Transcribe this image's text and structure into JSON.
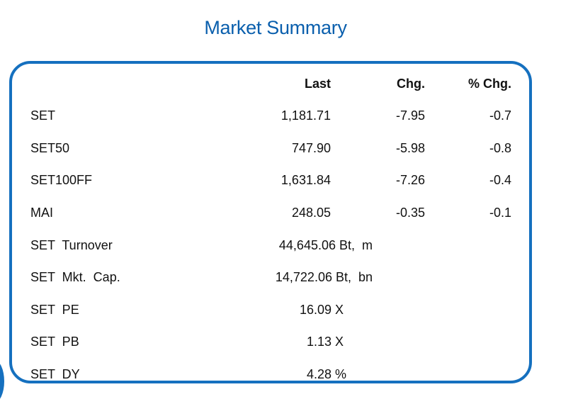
{
  "title": "Market Summary",
  "headers": {
    "last": "Last",
    "chg": "Chg.",
    "pct_chg": "% Chg."
  },
  "indices": [
    {
      "name": "SET",
      "last": "1,181.71",
      "chg": "-7.95",
      "pct_chg": "-0.7"
    },
    {
      "name": "SET50",
      "last": "747.90",
      "chg": "-5.98",
      "pct_chg": "-0.8"
    },
    {
      "name": "SET100FF",
      "last": "1,631.84",
      "chg": "-7.26",
      "pct_chg": "-0.4"
    },
    {
      "name": "MAI",
      "last": "248.05",
      "chg": "-0.35",
      "pct_chg": "-0.1"
    }
  ],
  "stats": [
    {
      "name": "SET  Turnover",
      "value": "44,645.06 Bt,  m"
    },
    {
      "name": "SET  Mkt.  Cap.",
      "value": "14,722.06 Bt,  bn"
    },
    {
      "name": "SET  PE",
      "value": "16.09 X"
    },
    {
      "name": "SET  PB",
      "value": "1.13 X"
    },
    {
      "name": "SET  DY",
      "value": "4.28 %"
    }
  ],
  "colors": {
    "accent": "#1570bf",
    "title": "#0a5fad"
  }
}
